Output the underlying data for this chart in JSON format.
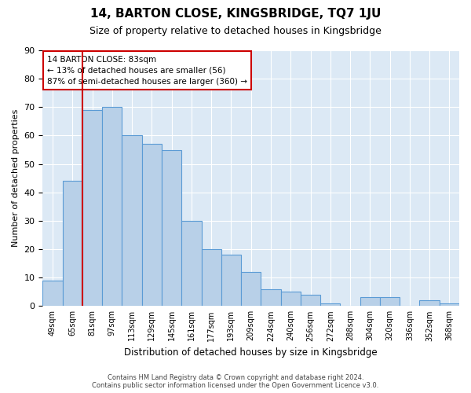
{
  "title": "14, BARTON CLOSE, KINGSBRIDGE, TQ7 1JU",
  "subtitle": "Size of property relative to detached houses in Kingsbridge",
  "xlabel": "Distribution of detached houses by size in Kingsbridge",
  "ylabel": "Number of detached properties",
  "categories": [
    "49sqm",
    "65sqm",
    "81sqm",
    "97sqm",
    "113sqm",
    "129sqm",
    "145sqm",
    "161sqm",
    "177sqm",
    "193sqm",
    "209sqm",
    "224sqm",
    "240sqm",
    "256sqm",
    "272sqm",
    "288sqm",
    "304sqm",
    "320sqm",
    "336sqm",
    "352sqm",
    "368sqm"
  ],
  "values": [
    9,
    44,
    69,
    70,
    60,
    57,
    55,
    30,
    20,
    18,
    12,
    6,
    5,
    4,
    1,
    0,
    3,
    3,
    0,
    2,
    1
  ],
  "bar_color": "#b8d0e8",
  "bar_edge_color": "#5b9bd5",
  "bg_color": "#dce9f5",
  "vline_x_pos": 1.5,
  "annotation_title": "14 BARTON CLOSE: 83sqm",
  "annotation_line1": "← 13% of detached houses are smaller (56)",
  "annotation_line2": "87% of semi-detached houses are larger (360) →",
  "annotation_box_color": "#ffffff",
  "annotation_border_color": "#cc0000",
  "vline_color": "#cc0000",
  "footer1": "Contains HM Land Registry data © Crown copyright and database right 2024.",
  "footer2": "Contains public sector information licensed under the Open Government Licence v3.0.",
  "ylim": [
    0,
    90
  ],
  "yticks": [
    0,
    10,
    20,
    30,
    40,
    50,
    60,
    70,
    80,
    90
  ]
}
